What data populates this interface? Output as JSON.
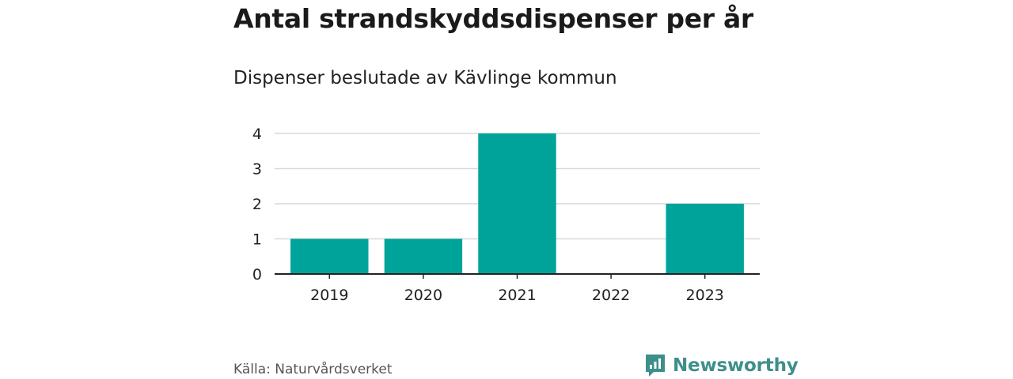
{
  "title": "Antal strandskyddsdispenser per år",
  "subtitle": "Dispenser beslutade av Kävlinge kommun",
  "source": "Källa: Naturvårdsverket",
  "brand": "Newsworthy",
  "colors": {
    "bar": "#00a39a",
    "grid": "#d9d9d9",
    "axis": "#222222",
    "brand": "#3d8f8a"
  },
  "chart_data": {
    "type": "bar",
    "categories": [
      "2019",
      "2020",
      "2021",
      "2022",
      "2023"
    ],
    "values": [
      1,
      1,
      4,
      0,
      2
    ],
    "yticks": [
      "0",
      "1",
      "2",
      "3",
      "4"
    ],
    "ylim": [
      0,
      4
    ],
    "grid": true
  }
}
